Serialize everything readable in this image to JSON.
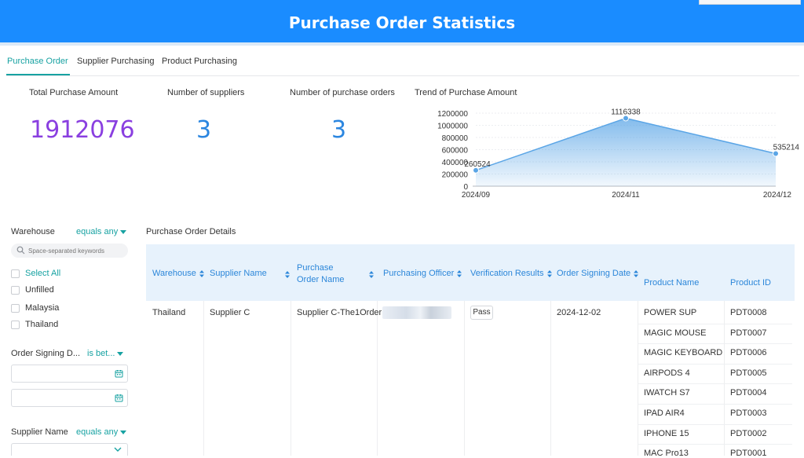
{
  "header": {
    "title": "Purchase Order Statistics"
  },
  "tabs": [
    {
      "label": "Purchase Order",
      "active": true
    },
    {
      "label": "Supplier Purchasing",
      "active": false
    },
    {
      "label": "Product Purchasing",
      "active": false
    }
  ],
  "kpis": {
    "total_amount": {
      "label": "Total Purchase Amount",
      "value": "1912076",
      "color": "#8a3fe0"
    },
    "suppliers": {
      "label": "Number of suppliers",
      "value": "3",
      "color": "#2b86e0"
    },
    "orders": {
      "label": "Number of purchase orders",
      "value": "3",
      "color": "#2b86e0"
    }
  },
  "chart_data": {
    "type": "area",
    "title": "Trend of Purchase Amount",
    "categories": [
      "2024/09",
      "2024/11",
      "2024/12"
    ],
    "series": [
      {
        "values": [
          260524,
          1116338,
          535214
        ]
      }
    ],
    "ylim": [
      0,
      1200000
    ],
    "yticks": [
      0,
      200000,
      400000,
      600000,
      800000,
      1000000,
      1200000
    ],
    "grid": true,
    "color": "#5aa5e6"
  },
  "filters": {
    "warehouse": {
      "label": "Warehouse",
      "operator": "equals any",
      "search_placeholder": "Space-separated keywords",
      "select_all": "Select All",
      "options": [
        "Unfilled",
        "Malaysia",
        "Thailand"
      ]
    },
    "order_signing_date": {
      "label": "Order Signing D...",
      "operator": "is bet..."
    },
    "supplier_name": {
      "label": "Supplier Name",
      "operator": "equals any"
    }
  },
  "details": {
    "title": "Purchase Order Details",
    "columns": {
      "warehouse": "Warehouse",
      "supplier_name": "Supplier Name",
      "po_name": "Purchase Order Name",
      "officer": "Purchasing Officer",
      "verification": "Verification Results",
      "signing_date": "Order Signing Date",
      "product_name": "Product Name",
      "product_id": "Product ID"
    },
    "row": {
      "warehouse": "Thailand",
      "supplier_name": "Supplier C",
      "po_name": "Supplier C-The1Order",
      "verification": "Pass",
      "signing_date": "2024-12-02"
    },
    "products": [
      {
        "name": "POWER SUP",
        "id": "PDT0008"
      },
      {
        "name": "MAGIC MOUSE",
        "id": "PDT0007"
      },
      {
        "name": "MAGIC KEYBOARD",
        "id": "PDT0006"
      },
      {
        "name": "AIRPODS 4",
        "id": "PDT0005"
      },
      {
        "name": "IWATCH S7",
        "id": "PDT0004"
      },
      {
        "name": "IPAD AIR4",
        "id": "PDT0003"
      },
      {
        "name": "IPHONE 15",
        "id": "PDT0002"
      },
      {
        "name": "MAC Pro13",
        "id": "PDT0001"
      }
    ]
  }
}
